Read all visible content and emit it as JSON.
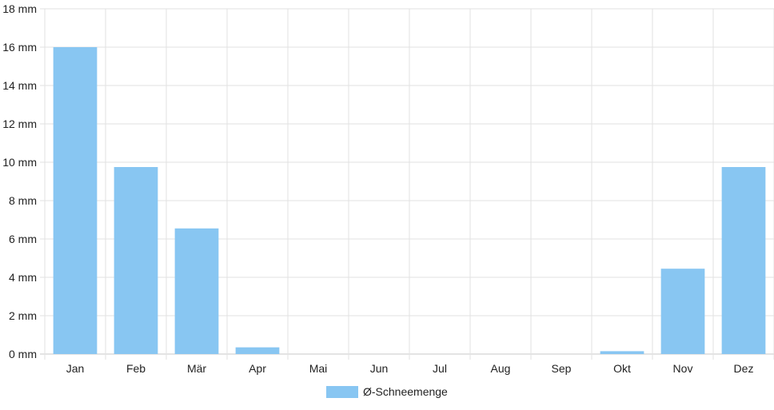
{
  "chart_data": {
    "type": "bar",
    "categories": [
      "Jan",
      "Feb",
      "Mär",
      "Apr",
      "Mai",
      "Jun",
      "Jul",
      "Aug",
      "Sep",
      "Okt",
      "Nov",
      "Dez"
    ],
    "series": [
      {
        "name": "Ø-Schneemenge",
        "values": [
          16.0,
          9.75,
          6.55,
          0.35,
          0,
          0,
          0,
          0,
          0,
          0.15,
          4.45,
          9.75
        ],
        "color": "#88c6f2"
      }
    ],
    "y_ticks": [
      "0 mm",
      "2 mm",
      "4 mm",
      "6 mm",
      "8 mm",
      "10 mm",
      "12 mm",
      "14 mm",
      "16 mm",
      "18 mm"
    ],
    "ylim": [
      0,
      18
    ],
    "grid": true,
    "legend_position": "bottom"
  }
}
